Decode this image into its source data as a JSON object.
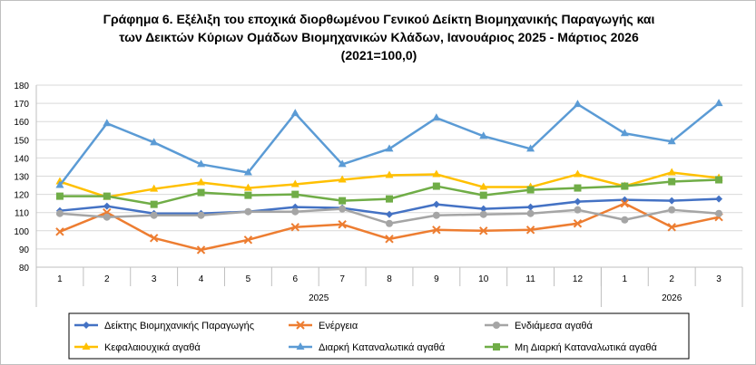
{
  "chart_title": {
    "line1": "Γράφημα 6. Εξέλιξη του εποχικά διορθωμένου Γενικού Δείκτη Βιομηχανικής Παραγωγής και",
    "line2": "των Δεικτών Κύριων Ομάδων Βιομηχανικών Κλάδων, Ιανουάριος 2025 - Μάρτιος 2026",
    "line3": "(2021=100,0)"
  },
  "chart_data": {
    "type": "line",
    "categories": [
      "1",
      "2",
      "3",
      "4",
      "5",
      "6",
      "7",
      "8",
      "9",
      "10",
      "11",
      "12",
      "1",
      "2",
      "3"
    ],
    "year_groups": [
      {
        "label": "2025",
        "count": 12
      },
      {
        "label": "2026",
        "count": 3
      }
    ],
    "ylim": [
      80,
      180
    ],
    "yticks": [
      80,
      90,
      100,
      110,
      120,
      130,
      140,
      150,
      160,
      170,
      180
    ],
    "grid": true,
    "legend_position": "bottom",
    "series": [
      {
        "name": "Δείκτης Βιομηχανικής Παραγωγής",
        "color": "#4472c4",
        "marker": "diamond",
        "values": [
          111,
          113.5,
          109.5,
          109.5,
          110.5,
          113,
          112.5,
          109,
          114.5,
          112,
          113,
          116,
          117,
          116.5,
          117.5
        ]
      },
      {
        "name": "Ενέργεια",
        "color": "#ed7d31",
        "marker": "cross",
        "values": [
          99.5,
          110,
          96,
          89.5,
          95,
          102,
          103.5,
          95.5,
          100.5,
          100,
          100.5,
          104,
          115,
          102,
          107.5
        ]
      },
      {
        "name": "Ενδιάμεσα αγαθά",
        "color": "#a5a5a5",
        "marker": "circle",
        "values": [
          109.5,
          107.5,
          108.5,
          108.5,
          110.5,
          110.5,
          112,
          104,
          108.5,
          109,
          109.5,
          111.5,
          106,
          111.5,
          109.5
        ]
      },
      {
        "name": "Κεφαλαιουχικά αγαθά",
        "color": "#ffc000",
        "marker": "triangle",
        "values": [
          127,
          118.5,
          123,
          126.5,
          123.5,
          125.5,
          128,
          130.5,
          131,
          124,
          124,
          131,
          124.5,
          132,
          129
        ]
      },
      {
        "name": "Διαρκή Καταναλωτικά αγαθά",
        "color": "#5b9bd5",
        "marker": "triangle",
        "values": [
          125,
          159,
          148.5,
          136.5,
          132,
          164.5,
          136.5,
          145,
          162,
          152,
          145,
          169.5,
          153.5,
          149,
          170
        ]
      },
      {
        "name": "Μη Διαρκή Καταναλωτικά αγαθά",
        "color": "#70ad47",
        "marker": "square",
        "values": [
          119,
          119,
          114.5,
          121,
          119.5,
          120,
          116.5,
          117.5,
          124.5,
          119.5,
          122.5,
          123.5,
          124.5,
          127,
          128
        ]
      }
    ]
  }
}
